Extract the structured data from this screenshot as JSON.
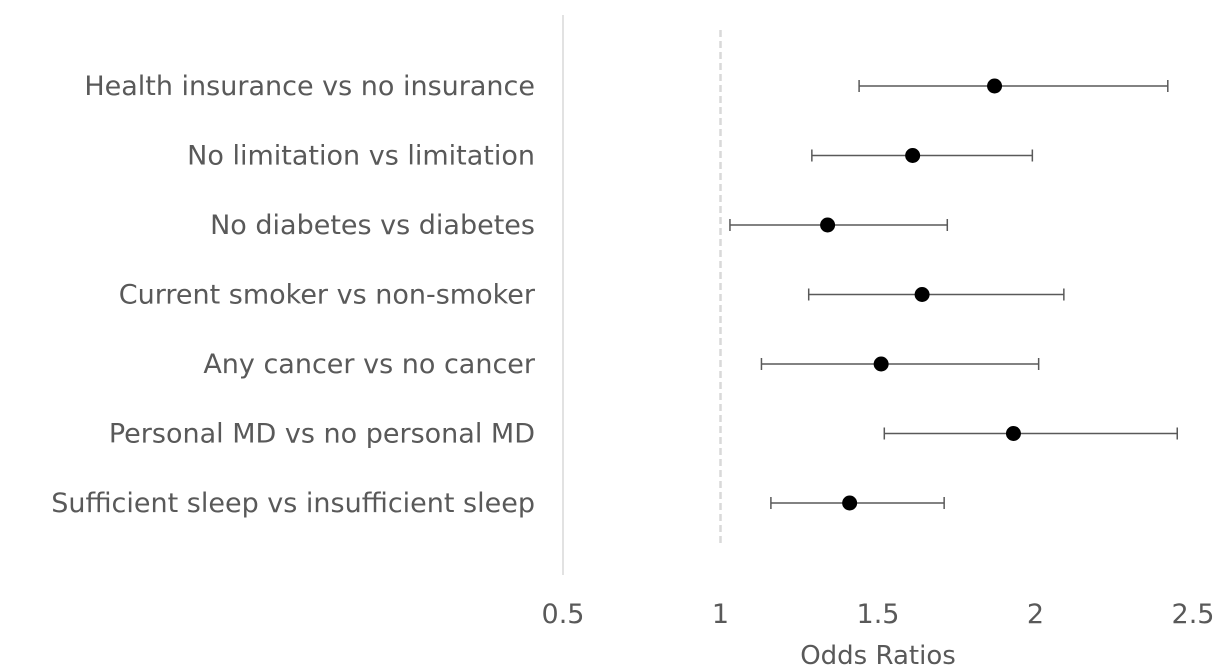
{
  "chart_data": {
    "type": "scatter",
    "subtype": "forest-plot",
    "title": "",
    "xlabel": "Odds Ratios",
    "ylabel": "",
    "xlim": [
      0.5,
      2.5
    ],
    "xticks": [
      0.5,
      1,
      1.5,
      2,
      2.5
    ],
    "xtick_labels": [
      "0.5",
      "1",
      "1.5",
      "2",
      "2.5"
    ],
    "reference_line": 1,
    "grid": false,
    "legend": "none",
    "colors": {
      "marker": "#000000",
      "error_bar": "#595959",
      "reference": "#d9d9d9",
      "axis": "#d9d9d9",
      "text": "#595959"
    },
    "categories": [
      "Health insurance vs no insurance",
      "No limitation vs limitation",
      "No diabetes vs diabetes",
      "Current smoker vs non-smoker",
      "Any cancer vs no cancer",
      "Personal MD vs no personal MD",
      "Sufficient sleep vs insufficient sleep"
    ],
    "values": [
      1.87,
      1.61,
      1.34,
      1.64,
      1.51,
      1.93,
      1.41
    ],
    "ci_lower": [
      1.44,
      1.29,
      1.03,
      1.28,
      1.13,
      1.52,
      1.16
    ],
    "ci_upper": [
      2.42,
      1.99,
      1.72,
      2.09,
      2.01,
      2.45,
      1.71
    ]
  }
}
